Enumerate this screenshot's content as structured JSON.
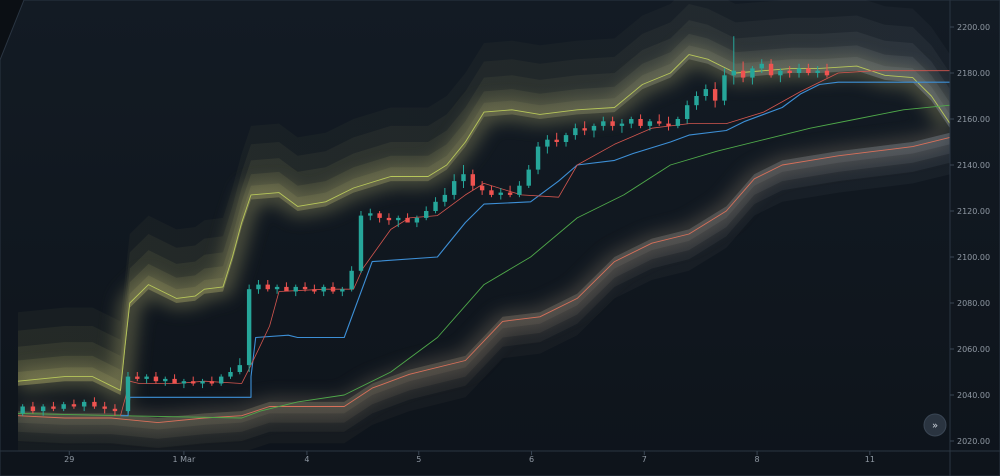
{
  "chart_data": {
    "type": "candlestick",
    "title": "",
    "xlabel": "",
    "ylabel": "",
    "ylim": [
      2018,
      2205
    ],
    "y_ticks": [
      "2200.00",
      "2180.00",
      "2160.00",
      "2140.00",
      "2120.00",
      "2100.00",
      "2080.00",
      "2060.00",
      "2040.00",
      "2020.00"
    ],
    "x_ticks": [
      {
        "label": "29",
        "t": 0.055
      },
      {
        "label": "1 Mar",
        "t": 0.178
      },
      {
        "label": "4",
        "t": 0.31
      },
      {
        "label": "5",
        "t": 0.43
      },
      {
        "label": "6",
        "t": 0.551
      },
      {
        "label": "7",
        "t": 0.672
      },
      {
        "label": "8",
        "t": 0.793
      },
      {
        "label": "11",
        "t": 0.914
      }
    ],
    "close_path": [
      [
        0.0,
        2034
      ],
      [
        0.03,
        2035
      ],
      [
        0.06,
        2035
      ],
      [
        0.09,
        2036
      ],
      [
        0.11,
        2033
      ],
      [
        0.118,
        2048
      ],
      [
        0.13,
        2048
      ],
      [
        0.16,
        2046
      ],
      [
        0.19,
        2045
      ],
      [
        0.22,
        2046
      ],
      [
        0.24,
        2052
      ],
      [
        0.255,
        2086
      ],
      [
        0.28,
        2087
      ],
      [
        0.31,
        2086
      ],
      [
        0.33,
        2086
      ],
      [
        0.35,
        2085
      ],
      [
        0.37,
        2096
      ],
      [
        0.38,
        2119
      ],
      [
        0.4,
        2118
      ],
      [
        0.42,
        2116
      ],
      [
        0.44,
        2118
      ],
      [
        0.46,
        2124
      ],
      [
        0.48,
        2127
      ],
      [
        0.5,
        2136
      ],
      [
        0.52,
        2130
      ],
      [
        0.54,
        2128
      ],
      [
        0.56,
        2127
      ],
      [
        0.58,
        2128
      ],
      [
        0.6,
        2138
      ],
      [
        0.62,
        2150
      ],
      [
        0.64,
        2152
      ],
      [
        0.66,
        2153
      ],
      [
        0.68,
        2157
      ],
      [
        0.7,
        2156
      ],
      [
        0.72,
        2160
      ],
      [
        0.74,
        2158
      ],
      [
        0.76,
        2159
      ],
      [
        0.78,
        2158
      ],
      [
        0.8,
        2160
      ],
      [
        0.82,
        2168
      ],
      [
        0.84,
        2174
      ],
      [
        0.86,
        2178
      ],
      [
        0.88,
        2182
      ],
      [
        0.9,
        2182
      ],
      [
        0.92,
        2179
      ],
      [
        0.94,
        2180
      ],
      [
        0.96,
        2181
      ],
      [
        0.98,
        2182
      ],
      [
        1.0,
        2180
      ]
    ],
    "blue_line": [
      [
        0.11,
        2031
      ],
      [
        0.118,
        2031
      ],
      [
        0.12,
        2039
      ],
      [
        0.25,
        2039
      ],
      [
        0.25,
        2048
      ],
      [
        0.255,
        2065
      ],
      [
        0.29,
        2066
      ],
      [
        0.3,
        2065
      ],
      [
        0.35,
        2065
      ],
      [
        0.38,
        2098
      ],
      [
        0.45,
        2100
      ],
      [
        0.46,
        2105
      ],
      [
        0.48,
        2115
      ],
      [
        0.5,
        2123
      ],
      [
        0.55,
        2124
      ],
      [
        0.58,
        2133
      ],
      [
        0.6,
        2140
      ],
      [
        0.64,
        2142
      ],
      [
        0.66,
        2145
      ],
      [
        0.7,
        2150
      ],
      [
        0.72,
        2153
      ],
      [
        0.76,
        2155
      ],
      [
        0.78,
        2159
      ],
      [
        0.82,
        2165
      ],
      [
        0.84,
        2171
      ],
      [
        0.86,
        2175
      ],
      [
        0.88,
        2176
      ],
      [
        0.92,
        2176
      ],
      [
        1.0,
        2176
      ]
    ],
    "red_line": [
      [
        0.11,
        2031
      ],
      [
        0.12,
        2046
      ],
      [
        0.13,
        2045
      ],
      [
        0.17,
        2045
      ],
      [
        0.2,
        2046
      ],
      [
        0.24,
        2045
      ],
      [
        0.25,
        2053
      ],
      [
        0.27,
        2070
      ],
      [
        0.28,
        2085
      ],
      [
        0.33,
        2086
      ],
      [
        0.36,
        2086
      ],
      [
        0.37,
        2095
      ],
      [
        0.4,
        2112
      ],
      [
        0.42,
        2117
      ],
      [
        0.45,
        2118
      ],
      [
        0.48,
        2127
      ],
      [
        0.5,
        2132
      ],
      [
        0.54,
        2127
      ],
      [
        0.58,
        2126
      ],
      [
        0.6,
        2140
      ],
      [
        0.64,
        2149
      ],
      [
        0.68,
        2156
      ],
      [
        0.72,
        2158
      ],
      [
        0.76,
        2158
      ],
      [
        0.8,
        2163
      ],
      [
        0.84,
        2172
      ],
      [
        0.88,
        2180
      ],
      [
        0.92,
        2181
      ],
      [
        0.96,
        2181
      ],
      [
        1.0,
        2181
      ]
    ],
    "green_line": [
      [
        0.0,
        2032
      ],
      [
        0.11,
        2031
      ],
      [
        0.24,
        2030
      ],
      [
        0.26,
        2033
      ],
      [
        0.3,
        2037
      ],
      [
        0.35,
        2040
      ],
      [
        0.4,
        2050
      ],
      [
        0.45,
        2065
      ],
      [
        0.5,
        2088
      ],
      [
        0.55,
        2100
      ],
      [
        0.6,
        2117
      ],
      [
        0.65,
        2127
      ],
      [
        0.7,
        2140
      ],
      [
        0.75,
        2146
      ],
      [
        0.8,
        2151
      ],
      [
        0.85,
        2156
      ],
      [
        0.9,
        2160
      ],
      [
        0.95,
        2164
      ],
      [
        1.0,
        2166
      ]
    ],
    "cloud_upper": [
      [
        0.0,
        2046
      ],
      [
        0.05,
        2048
      ],
      [
        0.08,
        2048
      ],
      [
        0.1,
        2044
      ],
      [
        0.11,
        2042
      ],
      [
        0.115,
        2062
      ],
      [
        0.12,
        2080
      ],
      [
        0.14,
        2088
      ],
      [
        0.17,
        2082
      ],
      [
        0.19,
        2083
      ],
      [
        0.2,
        2086
      ],
      [
        0.22,
        2087
      ],
      [
        0.23,
        2100
      ],
      [
        0.24,
        2115
      ],
      [
        0.25,
        2127
      ],
      [
        0.28,
        2128
      ],
      [
        0.3,
        2122
      ],
      [
        0.33,
        2124
      ],
      [
        0.36,
        2130
      ],
      [
        0.4,
        2135
      ],
      [
        0.44,
        2135
      ],
      [
        0.46,
        2140
      ],
      [
        0.48,
        2150
      ],
      [
        0.5,
        2163
      ],
      [
        0.53,
        2164
      ],
      [
        0.56,
        2162
      ],
      [
        0.6,
        2164
      ],
      [
        0.64,
        2165
      ],
      [
        0.67,
        2175
      ],
      [
        0.7,
        2180
      ],
      [
        0.72,
        2188
      ],
      [
        0.74,
        2186
      ],
      [
        0.77,
        2180
      ],
      [
        0.8,
        2181
      ],
      [
        0.83,
        2182
      ],
      [
        0.86,
        2182
      ],
      [
        0.9,
        2183
      ],
      [
        0.93,
        2179
      ],
      [
        0.96,
        2178
      ],
      [
        0.98,
        2170
      ],
      [
        1.0,
        2158
      ]
    ],
    "cloud_lower": [
      [
        0.0,
        2031
      ],
      [
        0.05,
        2030
      ],
      [
        0.1,
        2030
      ],
      [
        0.15,
        2028
      ],
      [
        0.2,
        2030
      ],
      [
        0.24,
        2031
      ],
      [
        0.27,
        2035
      ],
      [
        0.35,
        2035
      ],
      [
        0.38,
        2043
      ],
      [
        0.42,
        2049
      ],
      [
        0.48,
        2055
      ],
      [
        0.52,
        2072
      ],
      [
        0.56,
        2074
      ],
      [
        0.6,
        2082
      ],
      [
        0.64,
        2098
      ],
      [
        0.68,
        2106
      ],
      [
        0.72,
        2110
      ],
      [
        0.76,
        2120
      ],
      [
        0.79,
        2134
      ],
      [
        0.82,
        2140
      ],
      [
        0.85,
        2142
      ],
      [
        0.88,
        2144
      ],
      [
        0.92,
        2146
      ],
      [
        0.96,
        2148
      ],
      [
        1.0,
        2152
      ]
    ],
    "candles": [
      [
        0.005,
        2032,
        2036,
        2031,
        2035
      ],
      [
        0.016,
        2035,
        2037,
        2032,
        2033
      ],
      [
        0.027,
        2033,
        2036,
        2031,
        2035
      ],
      [
        0.038,
        2035,
        2037,
        2033,
        2034
      ],
      [
        0.049,
        2034,
        2037,
        2033,
        2036
      ],
      [
        0.06,
        2036,
        2038,
        2034,
        2035
      ],
      [
        0.071,
        2035,
        2038,
        2033,
        2037
      ],
      [
        0.082,
        2037,
        2039,
        2034,
        2035
      ],
      [
        0.093,
        2035,
        2037,
        2032,
        2034
      ],
      [
        0.104,
        2034,
        2036,
        2031,
        2033
      ],
      [
        0.118,
        2033,
        2050,
        2032,
        2048
      ],
      [
        0.128,
        2048,
        2050,
        2046,
        2047
      ],
      [
        0.138,
        2047,
        2049,
        2045,
        2048
      ],
      [
        0.148,
        2048,
        2050,
        2045,
        2046
      ],
      [
        0.158,
        2046,
        2048,
        2044,
        2047
      ],
      [
        0.168,
        2047,
        2049,
        2045,
        2045
      ],
      [
        0.178,
        2045,
        2047,
        2043,
        2046
      ],
      [
        0.188,
        2046,
        2048,
        2044,
        2045
      ],
      [
        0.198,
        2045,
        2047,
        2043,
        2046
      ],
      [
        0.208,
        2046,
        2048,
        2044,
        2045
      ],
      [
        0.218,
        2045,
        2049,
        2044,
        2048
      ],
      [
        0.228,
        2048,
        2052,
        2047,
        2050
      ],
      [
        0.238,
        2050,
        2056,
        2049,
        2053
      ],
      [
        0.248,
        2053,
        2088,
        2050,
        2086
      ],
      [
        0.258,
        2086,
        2090,
        2084,
        2088
      ],
      [
        0.268,
        2088,
        2090,
        2085,
        2086
      ],
      [
        0.278,
        2086,
        2088,
        2084,
        2087
      ],
      [
        0.288,
        2087,
        2089,
        2085,
        2085
      ],
      [
        0.298,
        2085,
        2088,
        2083,
        2087
      ],
      [
        0.308,
        2087,
        2089,
        2085,
        2086
      ],
      [
        0.318,
        2086,
        2088,
        2084,
        2085
      ],
      [
        0.328,
        2085,
        2088,
        2083,
        2087
      ],
      [
        0.338,
        2087,
        2089,
        2084,
        2085
      ],
      [
        0.348,
        2085,
        2087,
        2083,
        2086
      ],
      [
        0.358,
        2086,
        2096,
        2085,
        2094
      ],
      [
        0.368,
        2094,
        2120,
        2093,
        2118
      ],
      [
        0.378,
        2118,
        2121,
        2116,
        2119
      ],
      [
        0.388,
        2119,
        2120,
        2115,
        2117
      ],
      [
        0.398,
        2117,
        2119,
        2114,
        2116
      ],
      [
        0.408,
        2116,
        2118,
        2113,
        2117
      ],
      [
        0.418,
        2117,
        2119,
        2115,
        2115
      ],
      [
        0.428,
        2115,
        2118,
        2113,
        2117
      ],
      [
        0.438,
        2117,
        2122,
        2116,
        2120
      ],
      [
        0.448,
        2120,
        2126,
        2119,
        2124
      ],
      [
        0.458,
        2124,
        2130,
        2122,
        2127
      ],
      [
        0.468,
        2127,
        2136,
        2125,
        2133
      ],
      [
        0.478,
        2133,
        2140,
        2130,
        2136
      ],
      [
        0.488,
        2136,
        2138,
        2129,
        2131
      ],
      [
        0.498,
        2131,
        2133,
        2127,
        2129
      ],
      [
        0.508,
        2129,
        2131,
        2126,
        2127
      ],
      [
        0.518,
        2127,
        2130,
        2125,
        2128
      ],
      [
        0.528,
        2128,
        2131,
        2126,
        2127
      ],
      [
        0.538,
        2127,
        2133,
        2126,
        2131
      ],
      [
        0.548,
        2131,
        2140,
        2130,
        2138
      ],
      [
        0.558,
        2138,
        2150,
        2136,
        2148
      ],
      [
        0.568,
        2148,
        2153,
        2145,
        2151
      ],
      [
        0.578,
        2151,
        2154,
        2148,
        2150
      ],
      [
        0.588,
        2150,
        2154,
        2148,
        2153
      ],
      [
        0.598,
        2153,
        2158,
        2151,
        2156
      ],
      [
        0.608,
        2156,
        2159,
        2153,
        2155
      ],
      [
        0.618,
        2155,
        2158,
        2152,
        2157
      ],
      [
        0.628,
        2157,
        2161,
        2155,
        2159
      ],
      [
        0.638,
        2159,
        2161,
        2155,
        2157
      ],
      [
        0.648,
        2157,
        2160,
        2154,
        2158
      ],
      [
        0.658,
        2158,
        2161,
        2156,
        2160
      ],
      [
        0.668,
        2160,
        2162,
        2156,
        2157
      ],
      [
        0.678,
        2157,
        2160,
        2155,
        2159
      ],
      [
        0.688,
        2159,
        2162,
        2157,
        2158
      ],
      [
        0.698,
        2158,
        2161,
        2155,
        2157
      ],
      [
        0.708,
        2157,
        2161,
        2156,
        2160
      ],
      [
        0.718,
        2160,
        2168,
        2158,
        2166
      ],
      [
        0.728,
        2166,
        2172,
        2164,
        2170
      ],
      [
        0.738,
        2170,
        2175,
        2168,
        2173
      ],
      [
        0.748,
        2173,
        2176,
        2165,
        2168
      ],
      [
        0.758,
        2168,
        2182,
        2166,
        2179
      ],
      [
        0.768,
        2179,
        2196,
        2175,
        2181
      ],
      [
        0.778,
        2181,
        2185,
        2176,
        2178
      ],
      [
        0.788,
        2178,
        2183,
        2175,
        2182
      ],
      [
        0.798,
        2182,
        2186,
        2180,
        2184
      ],
      [
        0.808,
        2184,
        2186,
        2178,
        2179
      ],
      [
        0.818,
        2179,
        2182,
        2176,
        2181
      ],
      [
        0.828,
        2181,
        2183,
        2178,
        2180
      ],
      [
        0.838,
        2180,
        2184,
        2178,
        2182
      ],
      [
        0.848,
        2182,
        2184,
        2179,
        2180
      ],
      [
        0.858,
        2180,
        2183,
        2178,
        2181
      ],
      [
        0.868,
        2181,
        2184,
        2178,
        2179
      ]
    ]
  }
}
